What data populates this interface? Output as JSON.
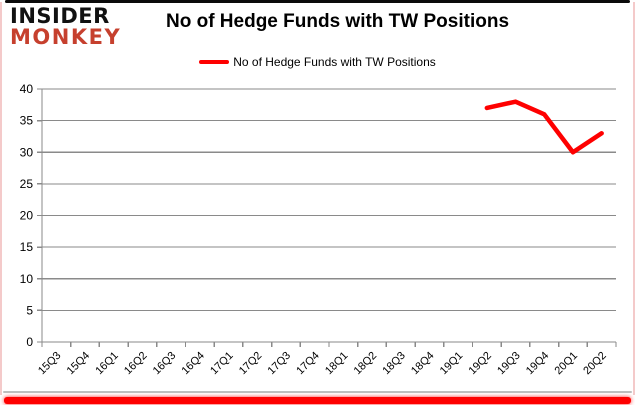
{
  "brand": {
    "line1": "INSIDER",
    "line2": "MONKEY",
    "line1_color": "#111111",
    "line2_color": "#c6402e"
  },
  "header": {
    "title": "No of Hedge Funds with TW Positions"
  },
  "legend": {
    "label": "No of Hedge Funds with TW Positions",
    "marker_color": "#fe0000"
  },
  "chart_data": {
    "type": "line",
    "title": "No of Hedge Funds with TW Positions",
    "categories": [
      "15Q3",
      "15Q4",
      "16Q1",
      "16Q2",
      "16Q3",
      "16Q4",
      "17Q1",
      "17Q2",
      "17Q3",
      "17Q4",
      "18Q1",
      "18Q2",
      "18Q3",
      "18Q4",
      "19Q1",
      "19Q2",
      "19Q3",
      "19Q4",
      "20Q1",
      "20Q2"
    ],
    "series": [
      {
        "name": "No of Hedge Funds with TW Positions",
        "color": "#fe0000",
        "values": [
          null,
          null,
          null,
          null,
          null,
          null,
          null,
          null,
          null,
          null,
          null,
          null,
          null,
          null,
          null,
          37,
          38,
          36,
          30,
          33
        ]
      }
    ],
    "xlabel": "",
    "ylabel": "",
    "ylim": [
      0,
      40
    ],
    "ytick_step": 5,
    "grid": "horizontal",
    "gridline_color": "#8a8a8a",
    "axis_color": "#8a8a8a",
    "legend_position": "top"
  },
  "frame": {
    "top_border_color": "#0a0a0a",
    "side_border_color": "#f1bdbd",
    "bottom_bar_color": "#fe0000"
  }
}
